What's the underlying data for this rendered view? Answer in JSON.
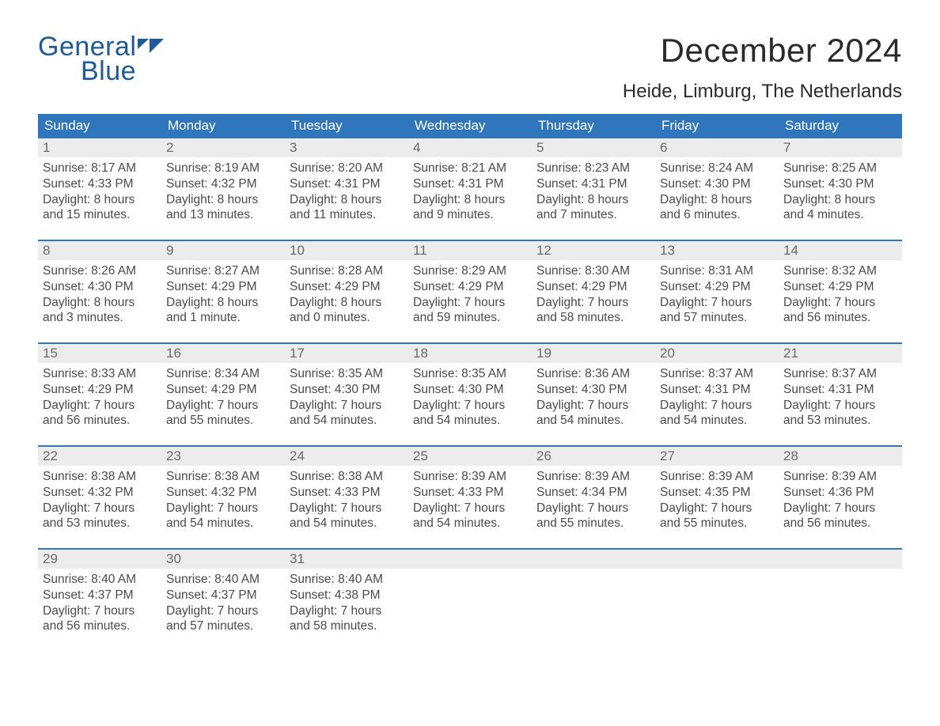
{
  "brand": {
    "word1": "General",
    "word2": "Blue",
    "color": "#1d5a99"
  },
  "title": "December 2024",
  "location": "Heide, Limburg, The Netherlands",
  "colors": {
    "header_bg": "#3076bc",
    "header_text": "#ffffff",
    "daynum_bg": "#ececec",
    "body_text": "#4a4a4a",
    "week_border": "#3076bc",
    "page_bg": "#ffffff"
  },
  "day_headers": [
    "Sunday",
    "Monday",
    "Tuesday",
    "Wednesday",
    "Thursday",
    "Friday",
    "Saturday"
  ],
  "weeks": [
    [
      {
        "n": "1",
        "sr": "Sunrise: 8:17 AM",
        "ss": "Sunset: 4:33 PM",
        "d1": "Daylight: 8 hours",
        "d2": "and 15 minutes."
      },
      {
        "n": "2",
        "sr": "Sunrise: 8:19 AM",
        "ss": "Sunset: 4:32 PM",
        "d1": "Daylight: 8 hours",
        "d2": "and 13 minutes."
      },
      {
        "n": "3",
        "sr": "Sunrise: 8:20 AM",
        "ss": "Sunset: 4:31 PM",
        "d1": "Daylight: 8 hours",
        "d2": "and 11 minutes."
      },
      {
        "n": "4",
        "sr": "Sunrise: 8:21 AM",
        "ss": "Sunset: 4:31 PM",
        "d1": "Daylight: 8 hours",
        "d2": "and 9 minutes."
      },
      {
        "n": "5",
        "sr": "Sunrise: 8:23 AM",
        "ss": "Sunset: 4:31 PM",
        "d1": "Daylight: 8 hours",
        "d2": "and 7 minutes."
      },
      {
        "n": "6",
        "sr": "Sunrise: 8:24 AM",
        "ss": "Sunset: 4:30 PM",
        "d1": "Daylight: 8 hours",
        "d2": "and 6 minutes."
      },
      {
        "n": "7",
        "sr": "Sunrise: 8:25 AM",
        "ss": "Sunset: 4:30 PM",
        "d1": "Daylight: 8 hours",
        "d2": "and 4 minutes."
      }
    ],
    [
      {
        "n": "8",
        "sr": "Sunrise: 8:26 AM",
        "ss": "Sunset: 4:30 PM",
        "d1": "Daylight: 8 hours",
        "d2": "and 3 minutes."
      },
      {
        "n": "9",
        "sr": "Sunrise: 8:27 AM",
        "ss": "Sunset: 4:29 PM",
        "d1": "Daylight: 8 hours",
        "d2": "and 1 minute."
      },
      {
        "n": "10",
        "sr": "Sunrise: 8:28 AM",
        "ss": "Sunset: 4:29 PM",
        "d1": "Daylight: 8 hours",
        "d2": "and 0 minutes."
      },
      {
        "n": "11",
        "sr": "Sunrise: 8:29 AM",
        "ss": "Sunset: 4:29 PM",
        "d1": "Daylight: 7 hours",
        "d2": "and 59 minutes."
      },
      {
        "n": "12",
        "sr": "Sunrise: 8:30 AM",
        "ss": "Sunset: 4:29 PM",
        "d1": "Daylight: 7 hours",
        "d2": "and 58 minutes."
      },
      {
        "n": "13",
        "sr": "Sunrise: 8:31 AM",
        "ss": "Sunset: 4:29 PM",
        "d1": "Daylight: 7 hours",
        "d2": "and 57 minutes."
      },
      {
        "n": "14",
        "sr": "Sunrise: 8:32 AM",
        "ss": "Sunset: 4:29 PM",
        "d1": "Daylight: 7 hours",
        "d2": "and 56 minutes."
      }
    ],
    [
      {
        "n": "15",
        "sr": "Sunrise: 8:33 AM",
        "ss": "Sunset: 4:29 PM",
        "d1": "Daylight: 7 hours",
        "d2": "and 56 minutes."
      },
      {
        "n": "16",
        "sr": "Sunrise: 8:34 AM",
        "ss": "Sunset: 4:29 PM",
        "d1": "Daylight: 7 hours",
        "d2": "and 55 minutes."
      },
      {
        "n": "17",
        "sr": "Sunrise: 8:35 AM",
        "ss": "Sunset: 4:30 PM",
        "d1": "Daylight: 7 hours",
        "d2": "and 54 minutes."
      },
      {
        "n": "18",
        "sr": "Sunrise: 8:35 AM",
        "ss": "Sunset: 4:30 PM",
        "d1": "Daylight: 7 hours",
        "d2": "and 54 minutes."
      },
      {
        "n": "19",
        "sr": "Sunrise: 8:36 AM",
        "ss": "Sunset: 4:30 PM",
        "d1": "Daylight: 7 hours",
        "d2": "and 54 minutes."
      },
      {
        "n": "20",
        "sr": "Sunrise: 8:37 AM",
        "ss": "Sunset: 4:31 PM",
        "d1": "Daylight: 7 hours",
        "d2": "and 54 minutes."
      },
      {
        "n": "21",
        "sr": "Sunrise: 8:37 AM",
        "ss": "Sunset: 4:31 PM",
        "d1": "Daylight: 7 hours",
        "d2": "and 53 minutes."
      }
    ],
    [
      {
        "n": "22",
        "sr": "Sunrise: 8:38 AM",
        "ss": "Sunset: 4:32 PM",
        "d1": "Daylight: 7 hours",
        "d2": "and 53 minutes."
      },
      {
        "n": "23",
        "sr": "Sunrise: 8:38 AM",
        "ss": "Sunset: 4:32 PM",
        "d1": "Daylight: 7 hours",
        "d2": "and 54 minutes."
      },
      {
        "n": "24",
        "sr": "Sunrise: 8:38 AM",
        "ss": "Sunset: 4:33 PM",
        "d1": "Daylight: 7 hours",
        "d2": "and 54 minutes."
      },
      {
        "n": "25",
        "sr": "Sunrise: 8:39 AM",
        "ss": "Sunset: 4:33 PM",
        "d1": "Daylight: 7 hours",
        "d2": "and 54 minutes."
      },
      {
        "n": "26",
        "sr": "Sunrise: 8:39 AM",
        "ss": "Sunset: 4:34 PM",
        "d1": "Daylight: 7 hours",
        "d2": "and 55 minutes."
      },
      {
        "n": "27",
        "sr": "Sunrise: 8:39 AM",
        "ss": "Sunset: 4:35 PM",
        "d1": "Daylight: 7 hours",
        "d2": "and 55 minutes."
      },
      {
        "n": "28",
        "sr": "Sunrise: 8:39 AM",
        "ss": "Sunset: 4:36 PM",
        "d1": "Daylight: 7 hours",
        "d2": "and 56 minutes."
      }
    ],
    [
      {
        "n": "29",
        "sr": "Sunrise: 8:40 AM",
        "ss": "Sunset: 4:37 PM",
        "d1": "Daylight: 7 hours",
        "d2": "and 56 minutes."
      },
      {
        "n": "30",
        "sr": "Sunrise: 8:40 AM",
        "ss": "Sunset: 4:37 PM",
        "d1": "Daylight: 7 hours",
        "d2": "and 57 minutes."
      },
      {
        "n": "31",
        "sr": "Sunrise: 8:40 AM",
        "ss": "Sunset: 4:38 PM",
        "d1": "Daylight: 7 hours",
        "d2": "and 58 minutes."
      },
      {
        "empty": true
      },
      {
        "empty": true
      },
      {
        "empty": true
      },
      {
        "empty": true
      }
    ]
  ]
}
